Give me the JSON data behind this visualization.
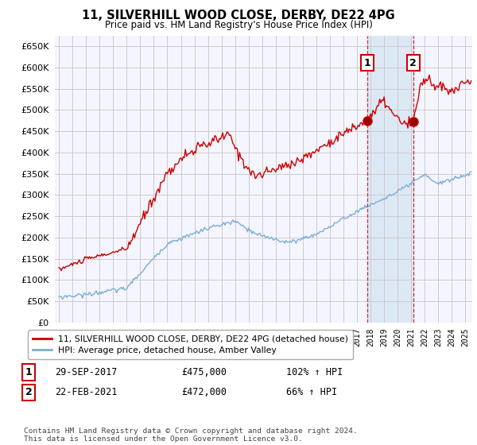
{
  "title_line1": "11, SILVERHILL WOOD CLOSE, DERBY, DE22 4PG",
  "title_line2": "Price paid vs. HM Land Registry's House Price Index (HPI)",
  "ytick_values": [
    0,
    50000,
    100000,
    150000,
    200000,
    250000,
    300000,
    350000,
    400000,
    450000,
    500000,
    550000,
    600000,
    650000
  ],
  "sale1_date_num": 2017.75,
  "sale1_price": 475000,
  "sale1_label": "1",
  "sale2_date_num": 2021.15,
  "sale2_price": 472000,
  "sale2_label": "2",
  "red_line_color": "#cc0000",
  "blue_line_color": "#7bafd4",
  "sale_vline_color": "#cc0000",
  "shade_color": "#dde8f5",
  "grid_color": "#cccccc",
  "background_color": "#f5f5ff",
  "legend_label_red": "11, SILVERHILL WOOD CLOSE, DERBY, DE22 4PG (detached house)",
  "legend_label_blue": "HPI: Average price, detached house, Amber Valley",
  "annotation1_date": "29-SEP-2017",
  "annotation1_price": "£475,000",
  "annotation1_hpi": "102% ↑ HPI",
  "annotation2_date": "22-FEB-2021",
  "annotation2_price": "£472,000",
  "annotation2_hpi": "66% ↑ HPI",
  "footer": "Contains HM Land Registry data © Crown copyright and database right 2024.\nThis data is licensed under the Open Government Licence v3.0.",
  "xlim_start": 1994.7,
  "xlim_end": 2025.5,
  "ylim_bottom": 0,
  "ylim_top": 675000
}
